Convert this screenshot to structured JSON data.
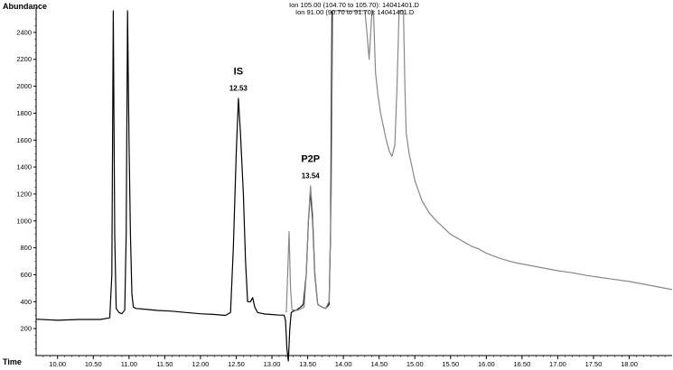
{
  "chart_data": {
    "type": "line",
    "ylabel": "Abundance",
    "xlabel": "Time",
    "xlim": [
      9.7,
      18.6
    ],
    "ylim": [
      0,
      2560
    ],
    "x_ticks": [
      "10.00",
      "10.50",
      "11.00",
      "11.50",
      "12.00",
      "12.50",
      "13.00",
      "13.50",
      "14.00",
      "14.50",
      "15.00",
      "15.50",
      "16.00",
      "16.50",
      "17.00",
      "17.50",
      "18.00"
    ],
    "y_ticks": [
      "200",
      "400",
      "600",
      "800",
      "1000",
      "1200",
      "1400",
      "1600",
      "1800",
      "2000",
      "2200",
      "2400"
    ],
    "legend": [
      "Ion 105.00 (104.70 to 105.70): 14041401.D",
      "Ion  91.00 (90.70 to 91.70): 14041401.D"
    ],
    "annotations": [
      {
        "name": "IS",
        "rt": "12.53",
        "x": 12.53,
        "y": 1900
      },
      {
        "name": "P2P",
        "rt": "13.54",
        "x": 13.54,
        "y": 1250
      }
    ],
    "series": [
      {
        "color": "#000000",
        "points": [
          [
            9.7,
            270
          ],
          [
            10.0,
            262
          ],
          [
            10.3,
            268
          ],
          [
            10.6,
            268
          ],
          [
            10.73,
            280
          ],
          [
            10.76,
            600
          ],
          [
            10.78,
            2600
          ],
          [
            10.8,
            900
          ],
          [
            10.82,
            350
          ],
          [
            10.86,
            320
          ],
          [
            10.9,
            310
          ],
          [
            10.94,
            340
          ],
          [
            10.96,
            900
          ],
          [
            10.98,
            2600
          ],
          [
            11.0,
            1600
          ],
          [
            11.02,
            900
          ],
          [
            11.04,
            460
          ],
          [
            11.06,
            360
          ],
          [
            11.1,
            350
          ],
          [
            11.2,
            345
          ],
          [
            11.4,
            335
          ],
          [
            11.6,
            330
          ],
          [
            11.8,
            320
          ],
          [
            12.0,
            310
          ],
          [
            12.2,
            305
          ],
          [
            12.35,
            298
          ],
          [
            12.42,
            320
          ],
          [
            12.46,
            800
          ],
          [
            12.5,
            1500
          ],
          [
            12.53,
            1910
          ],
          [
            12.56,
            1650
          ],
          [
            12.6,
            1200
          ],
          [
            12.63,
            700
          ],
          [
            12.66,
            400
          ],
          [
            12.7,
            400
          ],
          [
            12.73,
            430
          ],
          [
            12.76,
            360
          ],
          [
            12.8,
            320
          ],
          [
            12.9,
            308
          ],
          [
            13.0,
            305
          ],
          [
            13.1,
            300
          ],
          [
            13.17,
            300
          ],
          [
            13.19,
            260
          ],
          [
            13.21,
            50
          ],
          [
            13.23,
            -40
          ],
          [
            13.25,
            200
          ],
          [
            13.27,
            320
          ],
          [
            13.3,
            330
          ],
          [
            13.35,
            340
          ],
          [
            13.4,
            360
          ],
          [
            13.44,
            380
          ],
          [
            13.48,
            600
          ],
          [
            13.51,
            1000
          ],
          [
            13.54,
            1220
          ],
          [
            13.57,
            1000
          ],
          [
            13.6,
            600
          ],
          [
            13.64,
            380
          ],
          [
            13.7,
            360
          ],
          [
            13.75,
            350
          ],
          [
            13.8,
            380
          ],
          [
            13.82,
            900
          ],
          [
            13.84,
            2600
          ]
        ]
      },
      {
        "color": "#888888",
        "points": [
          [
            13.2,
            320
          ],
          [
            13.22,
            600
          ],
          [
            13.24,
            920
          ],
          [
            13.26,
            500
          ],
          [
            13.28,
            340
          ],
          [
            13.35,
            335
          ],
          [
            13.4,
            345
          ],
          [
            13.45,
            360
          ],
          [
            13.48,
            600
          ],
          [
            13.51,
            1000
          ],
          [
            13.54,
            1260
          ],
          [
            13.57,
            1050
          ],
          [
            13.6,
            620
          ],
          [
            13.64,
            380
          ],
          [
            13.7,
            360
          ],
          [
            13.75,
            350
          ],
          [
            13.8,
            400
          ],
          [
            13.83,
            1200
          ],
          [
            13.85,
            2600
          ],
          [
            14.3,
            2600
          ],
          [
            14.33,
            2400
          ],
          [
            14.36,
            2200
          ],
          [
            14.4,
            2600
          ],
          [
            14.42,
            2600
          ],
          [
            14.45,
            2100
          ],
          [
            14.48,
            1950
          ],
          [
            14.52,
            1800
          ],
          [
            14.56,
            1700
          ],
          [
            14.6,
            1600
          ],
          [
            14.64,
            1520
          ],
          [
            14.68,
            1480
          ],
          [
            14.72,
            1560
          ],
          [
            14.75,
            2000
          ],
          [
            14.78,
            2600
          ],
          [
            14.84,
            2600
          ],
          [
            14.86,
            2000
          ],
          [
            14.88,
            1650
          ],
          [
            14.92,
            1500
          ],
          [
            14.96,
            1400
          ],
          [
            15.0,
            1300
          ],
          [
            15.1,
            1150
          ],
          [
            15.2,
            1060
          ],
          [
            15.3,
            1000
          ],
          [
            15.4,
            950
          ],
          [
            15.5,
            900
          ],
          [
            15.6,
            870
          ],
          [
            15.7,
            840
          ],
          [
            15.8,
            810
          ],
          [
            15.9,
            790
          ],
          [
            16.0,
            760
          ],
          [
            16.1,
            740
          ],
          [
            16.2,
            720
          ],
          [
            16.3,
            705
          ],
          [
            16.4,
            690
          ],
          [
            16.6,
            670
          ],
          [
            16.8,
            650
          ],
          [
            17.0,
            630
          ],
          [
            17.2,
            615
          ],
          [
            17.4,
            595
          ],
          [
            17.6,
            580
          ],
          [
            17.8,
            565
          ],
          [
            18.0,
            550
          ],
          [
            18.2,
            530
          ],
          [
            18.4,
            510
          ],
          [
            18.6,
            490
          ]
        ]
      }
    ]
  }
}
